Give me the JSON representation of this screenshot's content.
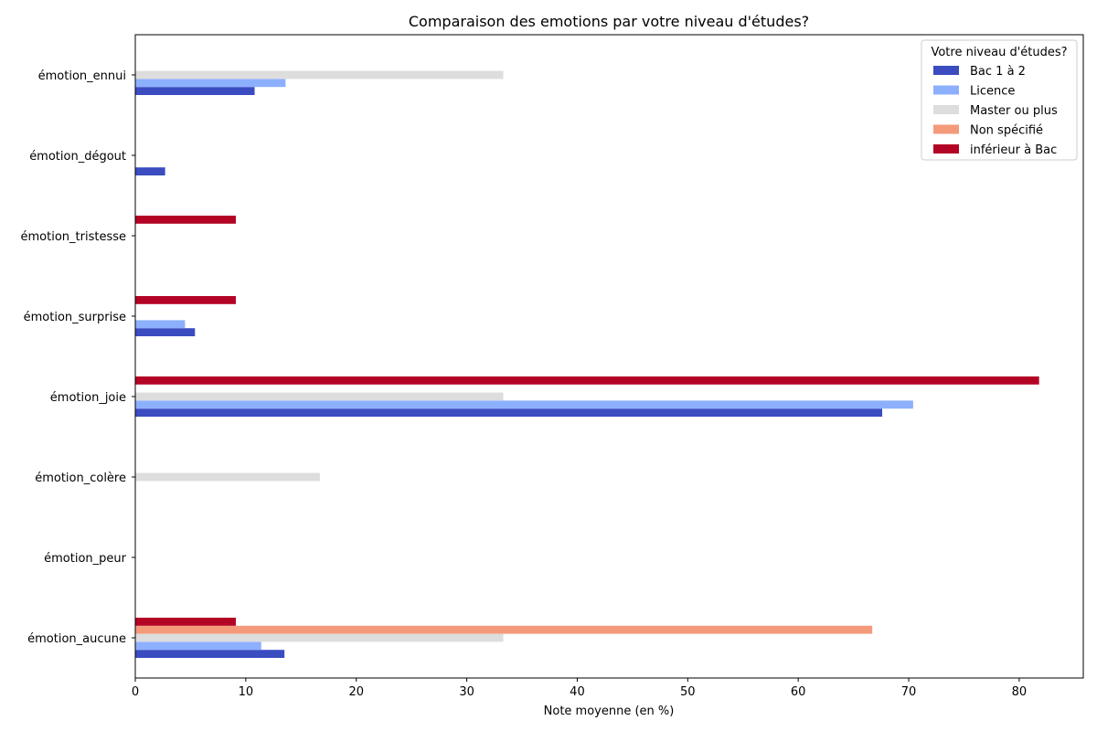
{
  "chart_data": {
    "type": "bar",
    "orientation": "horizontal",
    "title": "Comparaison des emotions par votre niveau d'études?",
    "xlabel": "Note moyenne (en %)",
    "ylabel": "",
    "xlim": [
      0,
      85.8
    ],
    "xticks": [
      0,
      10,
      20,
      30,
      40,
      50,
      60,
      70,
      80
    ],
    "grid": false,
    "legend": {
      "title": "Votre niveau d'études?",
      "placement": "top-right"
    },
    "categories": [
      "émotion_aucune",
      "émotion_peur",
      "émotion_colère",
      "émotion_joie",
      "émotion_surprise",
      "émotion_tristesse",
      "émotion_dégout",
      "émotion_ennui"
    ],
    "series": [
      {
        "name": "Bac 1 à 2",
        "color": "#3b4cc0",
        "values": [
          13.5,
          0,
          0,
          67.6,
          5.4,
          0,
          2.7,
          10.8
        ]
      },
      {
        "name": "Licence",
        "color": "#8db0fe",
        "values": [
          11.4,
          0,
          0,
          70.4,
          4.5,
          0,
          0,
          13.6
        ]
      },
      {
        "name": "Master ou plus",
        "color": "#dddddd",
        "values": [
          33.3,
          0,
          16.7,
          33.3,
          0,
          0,
          0,
          33.3
        ]
      },
      {
        "name": "Non spécifié",
        "color": "#f49a7b",
        "values": [
          66.7,
          0,
          0,
          0,
          0,
          0,
          0,
          0
        ]
      },
      {
        "name": "inférieur à Bac",
        "color": "#b40426",
        "values": [
          9.1,
          0,
          0,
          81.8,
          9.1,
          9.1,
          0,
          0
        ]
      }
    ]
  }
}
